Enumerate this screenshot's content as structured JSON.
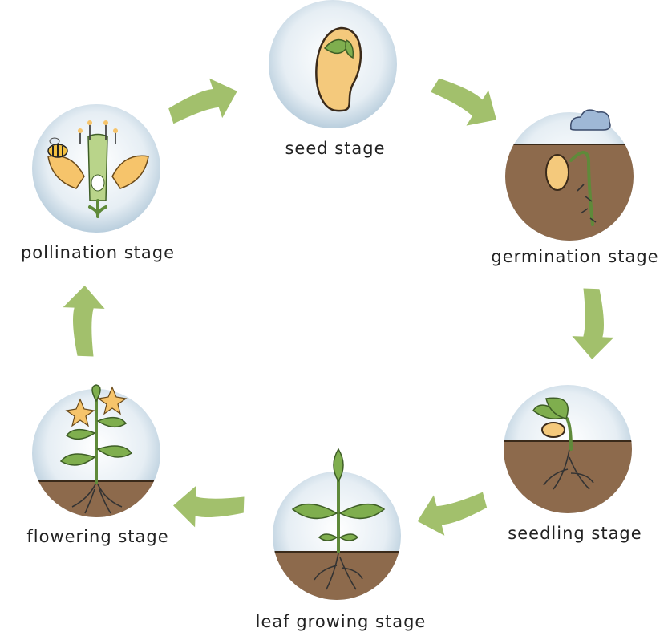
{
  "nodes": [
    {
      "label": "seed stage"
    },
    {
      "label": "germination stage"
    },
    {
      "label": "seedling stage"
    },
    {
      "label": "leaf growing stage"
    },
    {
      "label": "flowering stage"
    },
    {
      "label": "pollination stage"
    }
  ]
}
